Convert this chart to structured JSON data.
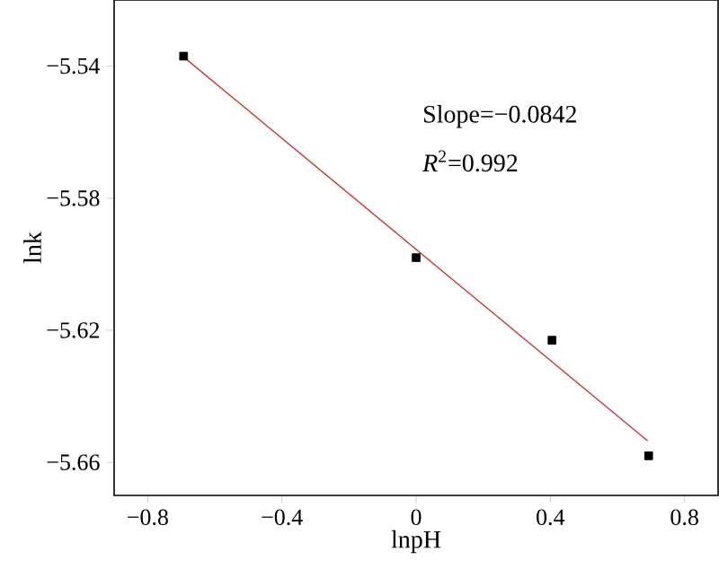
{
  "chart_data": {
    "type": "scatter",
    "xlabel": "lnpH",
    "ylabel": "lnk",
    "xlim": [
      -0.9,
      0.9
    ],
    "ylim": [
      -5.67,
      -5.52
    ],
    "xticks": [
      {
        "value": -0.8,
        "label": "−0.8"
      },
      {
        "value": -0.4,
        "label": "−0.4"
      },
      {
        "value": 0,
        "label": "0"
      },
      {
        "value": 0.4,
        "label": "0.4"
      },
      {
        "value": 0.8,
        "label": "0.8"
      }
    ],
    "yticks": [
      {
        "value": -5.66,
        "label": "−5.66"
      },
      {
        "value": -5.62,
        "label": "−5.62"
      },
      {
        "value": -5.58,
        "label": "−5.58"
      },
      {
        "value": -5.54,
        "label": "−5.54"
      }
    ],
    "series": [
      {
        "color": "#000000",
        "marker": "square",
        "x": [
          -0.693,
          0,
          0.405,
          0.693
        ],
        "values": [
          -5.537,
          -5.598,
          -5.623,
          -5.658
        ]
      },
      {
        "type": "line",
        "color": "#cc3333",
        "x": [
          -0.69,
          0.69
        ],
        "values": [
          -5.5375,
          -5.6535
        ]
      }
    ],
    "annotations": [
      "Slope=−0.0842",
      "*R*$^{2}$=0.992"
    ]
  }
}
